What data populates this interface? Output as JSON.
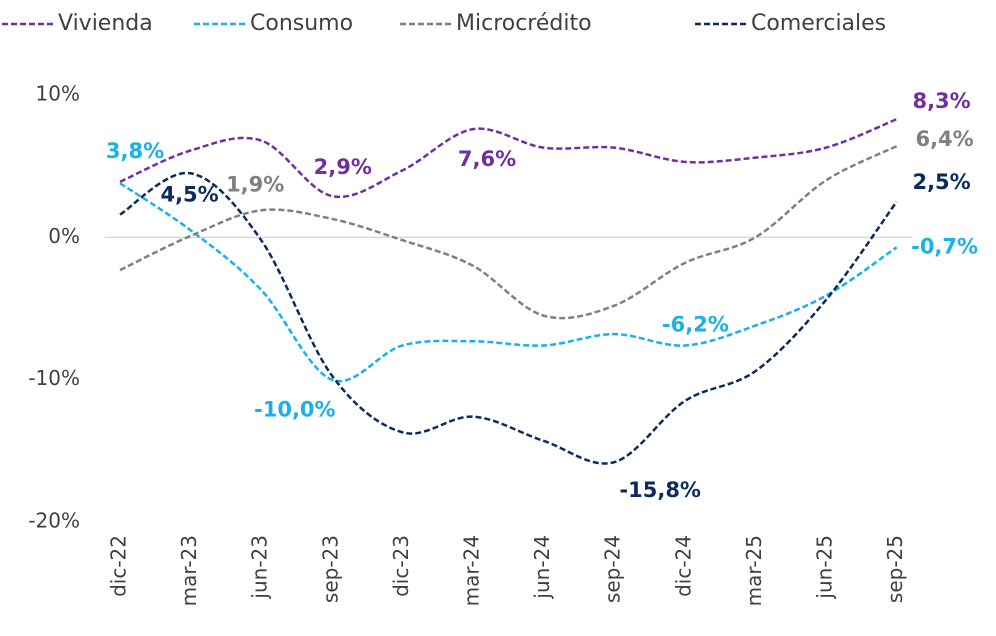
{
  "chart_data": {
    "type": "line",
    "categories": [
      "dic-22",
      "mar-23",
      "jun-23",
      "sep-23",
      "dic-23",
      "mar-24",
      "jun-24",
      "sep-24",
      "dic-24",
      "mar-25",
      "jun-25",
      "sep-25"
    ],
    "ylim": [
      -20,
      10
    ],
    "yticks": [
      {
        "value": -20,
        "label": "-20%"
      },
      {
        "value": -10,
        "label": "-10%"
      },
      {
        "value": 0,
        "label": "0%"
      },
      {
        "value": 10,
        "label": "10%"
      }
    ],
    "grid": false,
    "legend": "top",
    "series": [
      {
        "name": "Vivienda",
        "color": "#7030a0",
        "values": [
          3.9,
          6.1,
          6.8,
          2.9,
          4.7,
          7.6,
          6.3,
          6.3,
          5.3,
          5.6,
          6.3,
          8.3
        ],
        "value_labels": [
          null,
          null,
          null,
          "2,9%",
          null,
          "7,6%",
          null,
          null,
          null,
          null,
          null,
          "8,3%"
        ]
      },
      {
        "name": "Consumo",
        "color": "#1ab0e8",
        "values": [
          3.8,
          0.5,
          -3.7,
          -10.0,
          -7.6,
          -7.3,
          -7.6,
          -6.8,
          -7.6,
          -6.2,
          -4.1,
          -0.7
        ],
        "value_labels": [
          "3,8%",
          null,
          null,
          "-10,0%",
          null,
          null,
          null,
          null,
          null,
          "-6,2%",
          null,
          "-0,7%"
        ]
      },
      {
        "name": "Microcrédito",
        "color": "#808080",
        "values": [
          -2.3,
          0.1,
          1.9,
          1.3,
          -0.2,
          -2.0,
          -5.5,
          -4.8,
          -1.8,
          0.0,
          4.0,
          6.4
        ],
        "value_labels": [
          null,
          null,
          "1,9%",
          null,
          null,
          null,
          null,
          null,
          null,
          null,
          null,
          "6,4%"
        ]
      },
      {
        "name": "Comerciales",
        "color": "#0d2a5c",
        "values": [
          1.6,
          4.5,
          -0.2,
          -9.7,
          -13.7,
          -12.6,
          -14.3,
          -15.8,
          -11.5,
          -9.4,
          -4.4,
          2.5
        ],
        "value_labels": [
          null,
          "4,5%",
          null,
          null,
          null,
          null,
          null,
          "-15,8%",
          null,
          null,
          null,
          "2,5%"
        ]
      }
    ]
  }
}
